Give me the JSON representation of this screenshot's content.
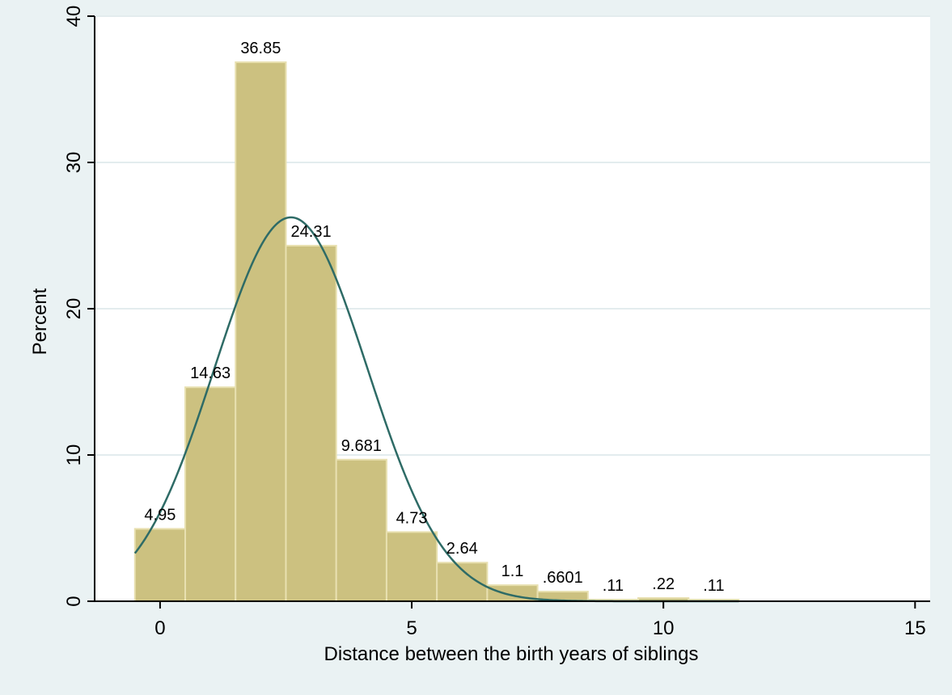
{
  "chart_data": {
    "type": "bar",
    "xlabel": "Distance between the birth years of siblings",
    "ylabel": "Percent",
    "xlim": [
      -1.3,
      15.3
    ],
    "ylim": [
      0,
      40
    ],
    "xticks": [
      0,
      5,
      10,
      15
    ],
    "yticks": [
      0,
      10,
      20,
      30,
      40
    ],
    "grid": true,
    "bins": [
      {
        "x": 0,
        "value": 4.95,
        "label": "4.95"
      },
      {
        "x": 1,
        "value": 14.63,
        "label": "14.63"
      },
      {
        "x": 2,
        "value": 36.85,
        "label": "36.85"
      },
      {
        "x": 3,
        "value": 24.31,
        "label": "24.31"
      },
      {
        "x": 4,
        "value": 9.681,
        "label": "9.681"
      },
      {
        "x": 5,
        "value": 4.73,
        "label": "4.73"
      },
      {
        "x": 6,
        "value": 2.64,
        "label": "2.64"
      },
      {
        "x": 7,
        "value": 1.1,
        "label": "1.1"
      },
      {
        "x": 8,
        "value": 0.6601,
        "label": ".6601"
      },
      {
        "x": 9,
        "value": 0.11,
        "label": ".11"
      },
      {
        "x": 10,
        "value": 0.22,
        "label": ".22"
      },
      {
        "x": 11,
        "value": 0.11,
        "label": ".11"
      }
    ],
    "normal_curve": {
      "mean": 2.6,
      "sd": 1.52
    },
    "colors": {
      "background": "#eaf2f3",
      "plot_background": "#ffffff",
      "bar_fill": "#ccc180",
      "bar_edge": "#e8e0b0",
      "curve": "#2e6b66",
      "grid": "#e3ecee"
    }
  }
}
